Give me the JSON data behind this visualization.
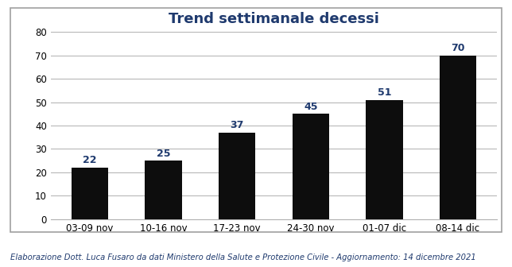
{
  "title": "Trend settimanale decessi",
  "categories": [
    "03-09 nov",
    "10-16 nov",
    "17-23 nov",
    "24-30 nov",
    "01-07 dic",
    "08-14 dic"
  ],
  "values": [
    22,
    25,
    37,
    45,
    51,
    70
  ],
  "bar_color": "#0d0d0d",
  "label_color": "#1f3a6e",
  "title_color": "#1f3a6e",
  "ylim": [
    0,
    80
  ],
  "yticks": [
    0,
    10,
    20,
    30,
    40,
    50,
    60,
    70,
    80
  ],
  "title_fontsize": 13,
  "label_fontsize": 9,
  "tick_fontsize": 8.5,
  "footer_text": "Elaborazione Dott. Luca Fusaro da dati Ministero della Salute e Protezione Civile - Aggiornamento: 14 dicembre 2021",
  "footer_color": "#1f3a6e",
  "footer_fontsize": 7.2,
  "background_color": "#ffffff",
  "grid_color": "#b0b0b0",
  "border_color": "#a0a0a0"
}
